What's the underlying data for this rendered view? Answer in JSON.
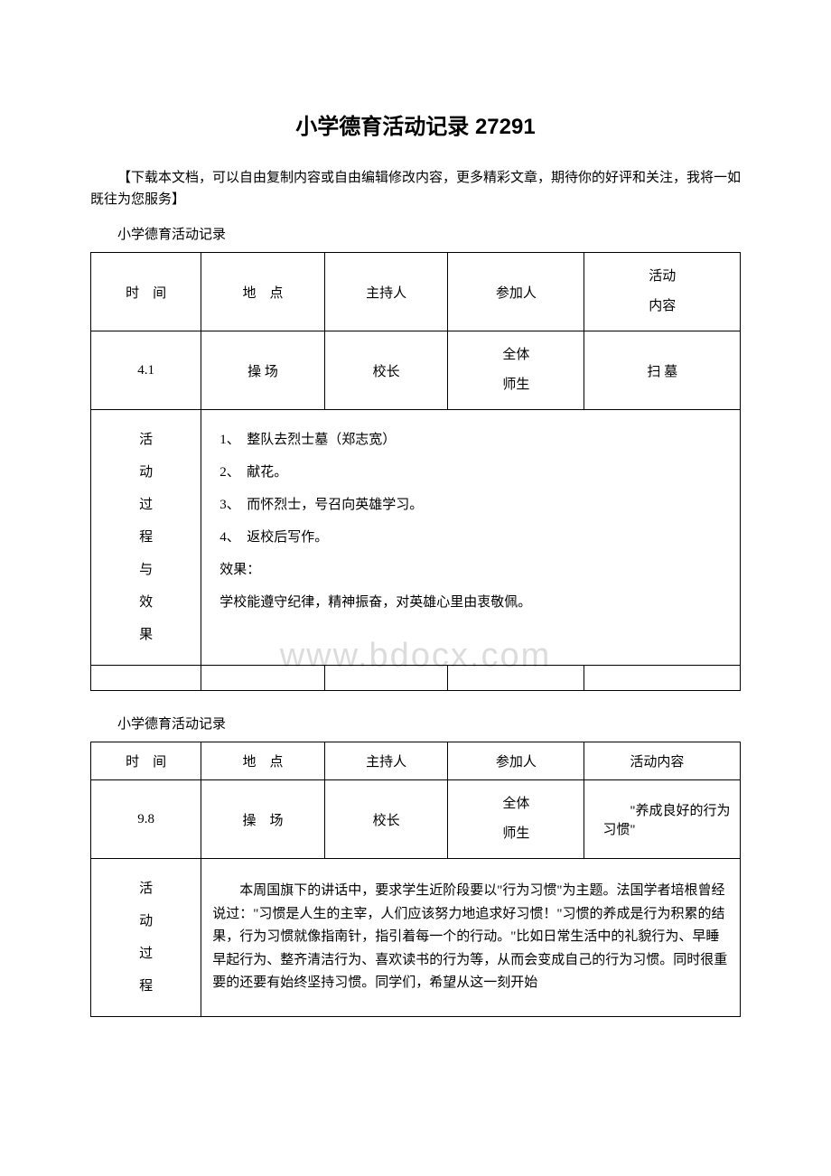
{
  "document": {
    "title": "小学德育活动记录 27291",
    "intro": "【下载本文档，可以自由复制内容或自由编辑修改内容，更多精彩文章，期待你的好评和关注，我将一如既往为您服务】",
    "watermark": "www.bdocx.com"
  },
  "table1": {
    "section_label": "小学德育活动记录",
    "headers": {
      "time": "时　间",
      "place": "地　点",
      "host": "主持人",
      "participant": "参加人",
      "content_line1": "活动",
      "content_line2": "内容"
    },
    "row1": {
      "time": "4.1",
      "place": "操 场",
      "host": "校长",
      "participant_line1": "全体",
      "participant_line2": "师生",
      "content": "扫 墓"
    },
    "process_label": {
      "l1": "活",
      "l2": "动",
      "l3": "过",
      "l4": "程",
      "l5": "与",
      "l6": "效",
      "l7": "果"
    },
    "process_content": {
      "line1": "1、　整队去烈士墓（郑志宽）",
      "line2": "2、　献花。",
      "line3": "3、　而怀烈士，号召向英雄学习。",
      "line4": "4、　返校后写作。",
      "line5": "效果：",
      "line6": "学校能遵守纪律，精神振奋，对英雄心里由衷敬佩。"
    }
  },
  "table2": {
    "section_label": "小学德育活动记录",
    "headers": {
      "time": "时　间",
      "place": "地　点",
      "host": "主持人",
      "participant": "参加人",
      "content": "　　活动内容"
    },
    "row1": {
      "time": "9.8",
      "place": "操　场",
      "host": "校长",
      "participant_line1": "全体",
      "participant_line2": "师生",
      "content": "　　\"养成良好的行为习惯\""
    },
    "process_label": {
      "l1": "活",
      "l2": "动",
      "l3": "过",
      "l4": "程"
    },
    "process_content": "本周国旗下的讲话中，要求学生近阶段要以\"行为习惯\"为主题。法国学者培根曾经说过：\"习惯是人生的主宰，人们应该努力地追求好习惯！\"习惯的养成是行为积累的结果，行为习惯就像指南针，指引着每一个的行动。\"比如日常生活中的礼貌行为、早睡早起行为、整齐清洁行为、喜欢读书的行为等，从而会变成自己的行为习惯。同时很重要的还要有始终坚持习惯。同学们，希望从这一刻开始"
  }
}
